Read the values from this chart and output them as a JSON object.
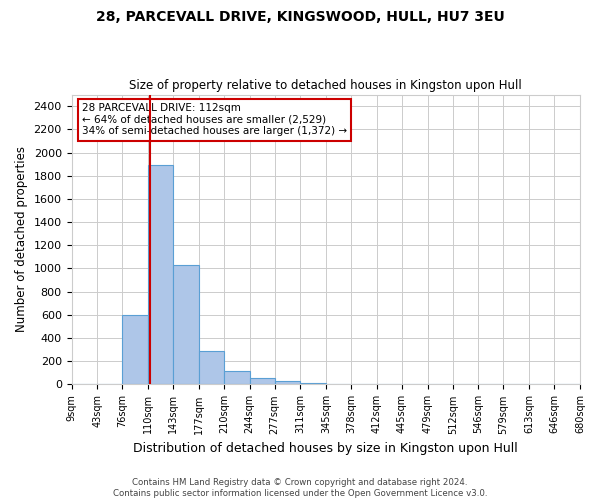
{
  "title1": "28, PARCEVALL DRIVE, KINGSWOOD, HULL, HU7 3EU",
  "title2": "Size of property relative to detached houses in Kingston upon Hull",
  "xlabel": "Distribution of detached houses by size in Kingston upon Hull",
  "ylabel": "Number of detached properties",
  "bin_edges": [
    9,
    43,
    76,
    110,
    143,
    177,
    210,
    244,
    277,
    311,
    345,
    378,
    412,
    445,
    479,
    512,
    546,
    579,
    613,
    646,
    680
  ],
  "bar_heights": [
    5,
    5,
    600,
    1890,
    1030,
    290,
    115,
    55,
    30,
    10,
    5,
    3,
    2,
    2,
    1,
    1,
    1,
    1,
    1,
    1
  ],
  "bar_color": "#aec6e8",
  "bar_edge_color": "#5a9fd4",
  "subject_size": 112,
  "red_line_color": "#cc0000",
  "annotation_line1": "28 PARCEVALL DRIVE: 112sqm",
  "annotation_line2": "← 64% of detached houses are smaller (2,529)",
  "annotation_line3": "34% of semi-detached houses are larger (1,372) →",
  "annotation_box_color": "#ffffff",
  "annotation_box_edge": "#cc0000",
  "ylim": [
    0,
    2500
  ],
  "yticks": [
    0,
    200,
    400,
    600,
    800,
    1000,
    1200,
    1400,
    1600,
    1800,
    2000,
    2200,
    2400
  ],
  "footnote": "Contains HM Land Registry data © Crown copyright and database right 2024.\nContains public sector information licensed under the Open Government Licence v3.0.",
  "background_color": "#ffffff",
  "grid_color": "#cccccc"
}
